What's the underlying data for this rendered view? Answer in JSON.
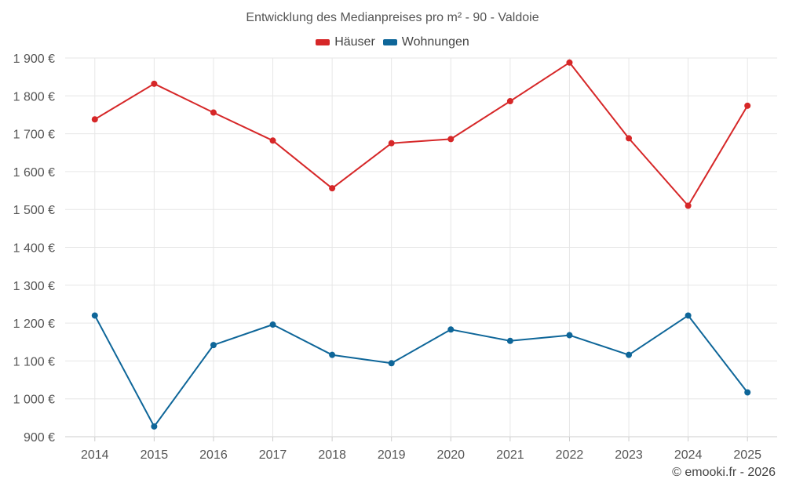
{
  "chart_data": {
    "type": "line",
    "title": "Entwicklung des Medianpreises pro m² - 90 - Valdoie",
    "categories": [
      "2014",
      "2015",
      "2016",
      "2017",
      "2018",
      "2019",
      "2020",
      "2021",
      "2022",
      "2023",
      "2024",
      "2025"
    ],
    "series": [
      {
        "name": "Häuser",
        "color": "#d62728",
        "values": [
          1738,
          1832,
          1756,
          1682,
          1556,
          1675,
          1686,
          1786,
          1888,
          1688,
          1510,
          1774
        ]
      },
      {
        "name": "Wohnungen",
        "color": "#0e6699",
        "values": [
          1220,
          927,
          1142,
          1196,
          1116,
          1094,
          1183,
          1153,
          1168,
          1116,
          1220,
          1017
        ]
      }
    ],
    "ylim": [
      900,
      1900
    ],
    "yticks": [
      900,
      1000,
      1100,
      1200,
      1300,
      1400,
      1500,
      1600,
      1700,
      1800,
      1900
    ],
    "ytick_labels": [
      "900 €",
      "1 000 €",
      "1 100 €",
      "1 200 €",
      "1 300 €",
      "1 400 €",
      "1 500 €",
      "1 600 €",
      "1 700 €",
      "1 800 €",
      "1 900 €"
    ],
    "xlabel": "",
    "ylabel": "",
    "grid": true,
    "legend_position": "top-center"
  },
  "credit": "© emooki.fr - 2026",
  "colors": {
    "grid": "#e6e6e6",
    "axis": "#cccccc",
    "tick_text": "#555555"
  }
}
